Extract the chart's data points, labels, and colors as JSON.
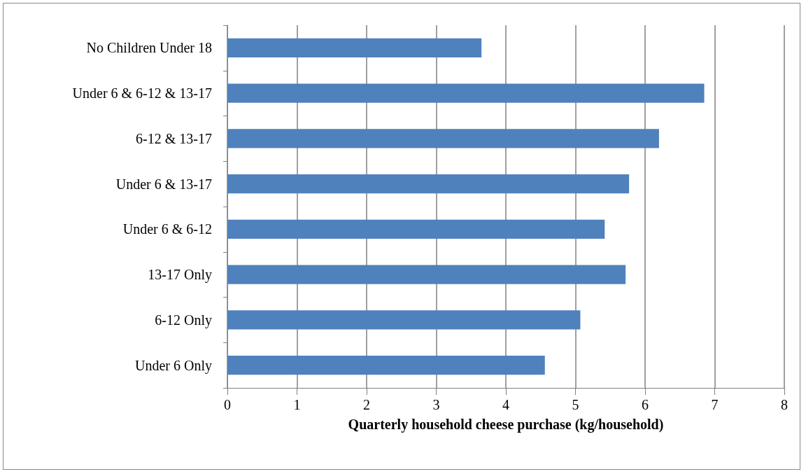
{
  "chart_data": {
    "type": "bar",
    "orientation": "horizontal",
    "xlabel": "Quarterly household cheese purchase (kg/household)",
    "categories": [
      "No Children Under 18",
      "Under 6 & 6-12 & 13-17",
      "6-12 & 13-17",
      "Under 6 & 13-17",
      "Under 6 & 6-12",
      "13-17 Only",
      "6-12 Only",
      "Under 6 Only"
    ],
    "values": [
      3.65,
      6.85,
      6.2,
      5.77,
      5.42,
      5.72,
      5.07,
      4.56
    ],
    "color": "#4f81bd",
    "xlim": [
      0,
      8
    ],
    "xticks": [
      0,
      1,
      2,
      3,
      4,
      5,
      6,
      7,
      8
    ],
    "grid": "x"
  }
}
